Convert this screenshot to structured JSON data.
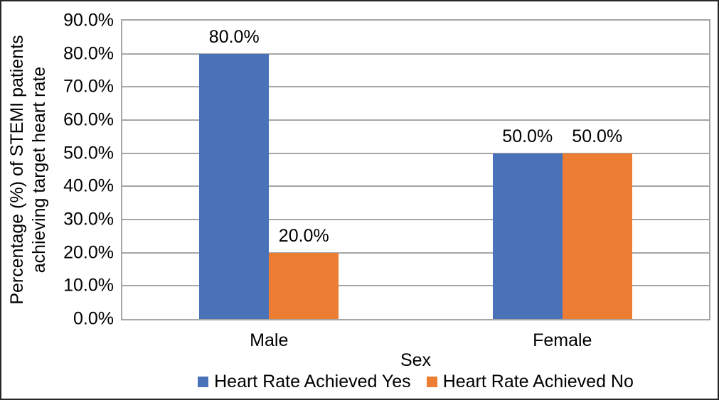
{
  "chart_data": {
    "type": "bar",
    "title": "",
    "categories": [
      "Male",
      "Female"
    ],
    "series": [
      {
        "name": "Heart Rate Achieved Yes",
        "color": "#4A72B8",
        "values": [
          80.0,
          50.0
        ],
        "labels": [
          "80.0%",
          "50.0%"
        ]
      },
      {
        "name": "Heart Rate Achieved No",
        "color": "#EC7D32",
        "values": [
          20.0,
          50.0
        ],
        "labels": [
          "20.0%",
          "50.0%"
        ]
      }
    ],
    "xlabel": "Sex",
    "ylabel": "Percentage (%) of STEMI patients achieving target heart rate",
    "ylabel_lines": [
      "Percentage (%) of STEMI patients",
      "achieving target heart rate"
    ],
    "ylim": [
      0,
      90
    ],
    "ytick_step": 10,
    "yticks": [
      "90.0%",
      "80.0%",
      "70.0%",
      "60.0%",
      "50.0%",
      "40.0%",
      "30.0%",
      "20.0%",
      "10.0%",
      "0.0%"
    ],
    "grid": "horizontal",
    "legend_position": "bottom",
    "colors": {
      "bar_yes": "#4A72B8",
      "bar_no": "#EC7D32",
      "gridline": "#A6A6A6",
      "plot_border": "#A6A6A6",
      "outer_border": "#262626",
      "text": "#000000",
      "background": "#FFFFFF"
    }
  }
}
